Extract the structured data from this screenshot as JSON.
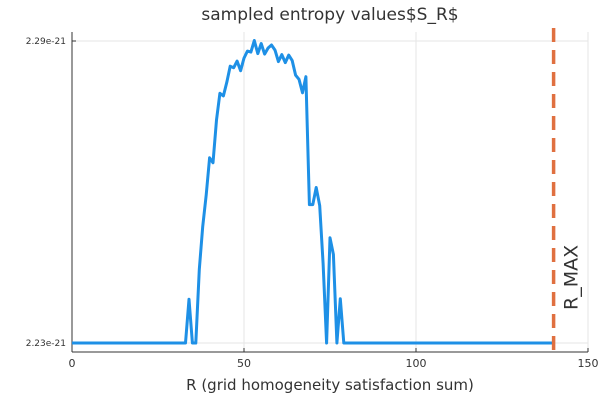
{
  "chart_data": {
    "type": "line",
    "title": "sampled entropy values$S_R$",
    "xlabel": "R (grid homogeneity satisfaction sum)",
    "ylabel": "",
    "xlim": [
      0,
      150
    ],
    "ylim": [
      2.23e-21,
      2.29e-21
    ],
    "xticks": [
      0,
      50,
      100,
      150
    ],
    "xtick_labels": [
      "0",
      "50",
      "100",
      "150"
    ],
    "yticks": [
      2.23e-21,
      2.29e-21
    ],
    "ytick_labels": [
      "2.23e-21",
      "2.29e-21"
    ],
    "grid": true,
    "series": [
      {
        "color": "#1e90e6",
        "x": [
          0,
          5,
          10,
          15,
          20,
          25,
          30,
          33,
          34,
          35,
          36,
          37,
          38,
          39,
          40,
          41,
          42,
          43,
          44,
          45,
          46,
          47,
          48,
          49,
          50,
          51,
          52,
          53,
          54,
          55,
          56,
          57,
          58,
          59,
          60,
          61,
          62,
          63,
          64,
          65,
          66,
          67,
          68,
          69,
          70,
          71,
          72,
          73,
          74,
          75,
          76,
          77,
          78,
          79,
          80,
          81,
          85,
          90,
          95,
          100,
          105,
          110,
          115,
          120,
          125,
          130,
          135,
          140
        ],
        "y": [
          2.23e-21,
          2.23e-21,
          2.23e-21,
          2.23e-21,
          2.23e-21,
          2.23e-21,
          2.23e-21,
          2.23e-21,
          2.2387e-21,
          2.23e-21,
          2.23e-21,
          2.2446e-21,
          2.2531e-21,
          2.2594e-21,
          2.2668e-21,
          2.2658e-21,
          2.2743e-21,
          2.2796e-21,
          2.2791e-21,
          2.2818e-21,
          2.285e-21,
          2.2847e-21,
          2.286e-21,
          2.2841e-21,
          2.2866e-21,
          2.288e-21,
          2.2878e-21,
          2.2901e-21,
          2.2875e-21,
          2.2895e-21,
          2.2874e-21,
          2.2886e-21,
          2.2892e-21,
          2.2882e-21,
          2.2859e-21,
          2.2873e-21,
          2.2857e-21,
          2.2872e-21,
          2.2861e-21,
          2.2832e-21,
          2.2824e-21,
          2.2797e-21,
          2.2829e-21,
          2.2575e-21,
          2.2575e-21,
          2.2609e-21,
          2.2573e-21,
          2.2458e-21,
          2.23e-21,
          2.2509e-21,
          2.2476e-21,
          2.23e-21,
          2.2388e-21,
          2.23e-21,
          2.23e-21,
          2.23e-21,
          2.23e-21,
          2.23e-21,
          2.23e-21,
          2.23e-21,
          2.23e-21,
          2.23e-21,
          2.23e-21,
          2.23e-21,
          2.23e-21,
          2.23e-21,
          2.23e-21,
          2.23e-21
        ]
      }
    ],
    "vline": {
      "x": 140,
      "label": "R_MAX",
      "color": "#e07040",
      "style": "dashed"
    }
  }
}
